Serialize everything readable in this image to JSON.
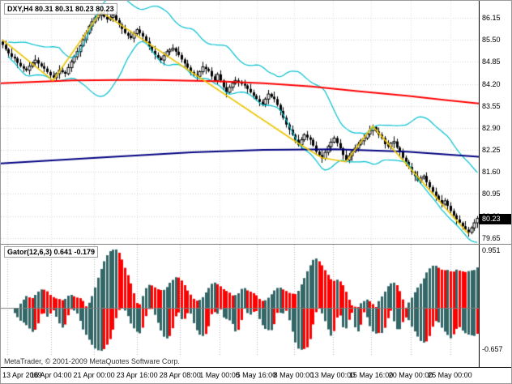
{
  "main_chart": {
    "title": "DXY,H4 80.31 80.31 80.23 80.23",
    "current_price": "80.23",
    "axis_labels": [
      "86.15",
      "85.50",
      "84.85",
      "84.20",
      "83.55",
      "82.90",
      "82.25",
      "81.60",
      "80.95",
      "80.30",
      "79.65"
    ]
  },
  "gator": {
    "label": "Gator(12,6,3) 0.641 -0.179",
    "axis_max_label": "0.951",
    "axis_min_label": "-0.657"
  },
  "time_axis": {
    "labels": [
      {
        "text": "13 Apr 2009",
        "x": 0.013
      },
      {
        "text": "16 Apr 04:00",
        "x": 0.105
      },
      {
        "text": "21 Apr 00:00",
        "x": 0.195
      },
      {
        "text": "23 Apr 16:00",
        "x": 0.285
      },
      {
        "text": "28 Apr 08:00",
        "x": 0.375
      },
      {
        "text": "1 May 00:00",
        "x": 0.458
      },
      {
        "text": "5 May 16:00",
        "x": 0.535
      },
      {
        "text": "8 May 00:00",
        "x": 0.613
      },
      {
        "text": "13 May 00:00",
        "x": 0.695
      },
      {
        "text": "15 May 16:00",
        "x": 0.775
      },
      {
        "text": "20 May 00:00",
        "x": 0.858
      },
      {
        "text": "25 May 00:00",
        "x": 0.94
      }
    ]
  },
  "footer": {
    "text": "MetaTrader, © 2001-2009 MetaQuotes Software Corp."
  },
  "chart_data": [
    {
      "type": "candlestick",
      "title": "DXY H4 price",
      "ylim": [
        79.48,
        86.65
      ],
      "first_open": 85.45,
      "closes": [
        85.35,
        85.22,
        85.1,
        85.0,
        84.95,
        84.82,
        84.72,
        84.65,
        84.6,
        84.72,
        84.82,
        84.9,
        84.8,
        84.72,
        84.65,
        84.55,
        84.45,
        84.38,
        84.5,
        84.6,
        84.55,
        84.5,
        84.68,
        84.85,
        85.0,
        85.15,
        85.32,
        85.5,
        85.7,
        85.9,
        86.03,
        86.15,
        86.22,
        86.28,
        86.18,
        86.1,
        86.16,
        86.22,
        86.08,
        85.95,
        85.82,
        85.7,
        85.62,
        85.55,
        85.68,
        85.8,
        85.7,
        85.6,
        85.45,
        85.3,
        85.17,
        85.05,
        84.97,
        84.9,
        85.03,
        85.15,
        85.2,
        85.25,
        85.15,
        85.05,
        84.92,
        84.8,
        84.68,
        84.55,
        84.48,
        84.42,
        84.56,
        84.7,
        84.64,
        84.58,
        84.42,
        84.3,
        84.48,
        84.3,
        84.1,
        83.95,
        84.1,
        84.22,
        84.3,
        84.25,
        84.2,
        84.15,
        84.05,
        83.95,
        83.85,
        83.75,
        83.67,
        83.6,
        83.75,
        83.9,
        83.82,
        83.75,
        83.58,
        83.4,
        83.2,
        83.0,
        82.85,
        82.7,
        82.55,
        82.4,
        82.55,
        82.7,
        82.62,
        82.55,
        82.38,
        82.2,
        82.1,
        82.0,
        82.18,
        82.35,
        82.48,
        82.6,
        82.45,
        82.3,
        82.1,
        81.95,
        82.08,
        82.2,
        82.3,
        82.42,
        82.52,
        82.6,
        82.72,
        82.82,
        82.92,
        82.8,
        82.7,
        82.6,
        82.42,
        82.35,
        82.45,
        82.5,
        82.32,
        82.18,
        82.02,
        81.9,
        81.75,
        81.6,
        81.48,
        81.35,
        81.42,
        81.48,
        81.3,
        81.15,
        81.02,
        80.9,
        80.77,
        80.65,
        80.75,
        80.6,
        80.45,
        80.32,
        80.2,
        80.1,
        80.0,
        79.9,
        79.82,
        79.95,
        80.1,
        80.23
      ],
      "wiggle_high": [
        0.06,
        0.12,
        0.04,
        0.15,
        0.08,
        0.05,
        0.11,
        0.07
      ],
      "wiggle_low": [
        0.1,
        0.05,
        0.13,
        0.06,
        0.09,
        0.15,
        0.04
      ],
      "candle_color": "#000000",
      "overlays": {
        "bollinger": {
          "period": 20,
          "deviation": 2,
          "color": "#00c0d0"
        },
        "zigzag_yellow": {
          "color": "#edc500",
          "points_bar_price": [
            [
              0,
              85.5
            ],
            [
              17,
              84.3
            ],
            [
              33,
              86.33
            ],
            [
              99,
              82.45
            ],
            [
              107,
              82.02
            ],
            [
              115,
              81.9
            ],
            [
              124,
              82.95
            ],
            [
              156,
              79.78
            ]
          ]
        },
        "ma_red": {
          "color": "#ff0000",
          "points_frac_price": [
            [
              0,
              84.22
            ],
            [
              0.15,
              84.3
            ],
            [
              0.3,
              84.32
            ],
            [
              0.45,
              84.28
            ],
            [
              0.55,
              84.22
            ],
            [
              0.65,
              84.12
            ],
            [
              0.75,
              83.98
            ],
            [
              0.85,
              83.85
            ],
            [
              0.93,
              83.72
            ],
            [
              1,
              83.62
            ]
          ]
        },
        "ma_navy": {
          "color": "#000080",
          "points_frac_price": [
            [
              0,
              81.85
            ],
            [
              0.2,
              82.02
            ],
            [
              0.4,
              82.18
            ],
            [
              0.55,
              82.25
            ],
            [
              0.7,
              82.27
            ],
            [
              0.85,
              82.2
            ],
            [
              1,
              82.05
            ]
          ]
        }
      }
    },
    {
      "type": "bar",
      "title": "Gator(12,6,3)",
      "derivation": "upper=|SMA12[i-8]-SMA6[i-5]|, lower=-|SMA6[i-5]-SMA3[i-3]| of closes",
      "current_upper": 0.641,
      "current_lower": -0.179,
      "ylim": [
        -0.657,
        0.951
      ],
      "colors": {
        "rising": "#336666",
        "falling": "#ff0000"
      }
    }
  ]
}
